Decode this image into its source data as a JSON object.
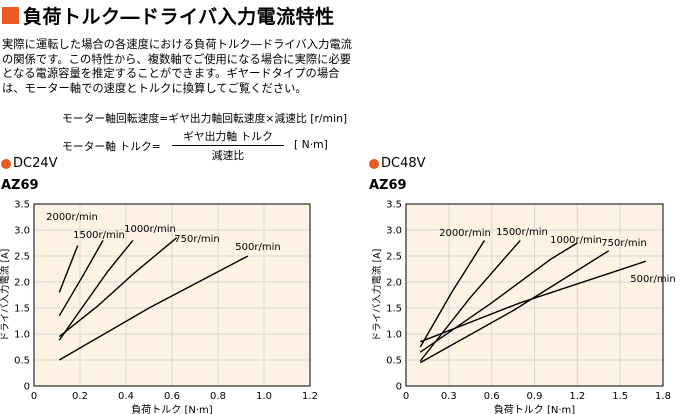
{
  "title": "負荷トルク―ドライバ入力電流特性",
  "intro": "実際に運転した場合の各速度における負荷トルク―ドライバ入力電流の関係です。この特性から、複数軸でご使用になる場合に実際に必要となる電源容量を推定することができます。ギヤードタイプの場合は、モーター軸での速度とトルクに換算してご覧ください。",
  "formula1": "モーター軸回転速度=ギヤ出力軸回転速度×減速比 [r/min]",
  "formula2": {
    "lhs": "モーター軸 トルク=",
    "numerator": "ギヤ出力軸 トルク",
    "denominator": "減速比",
    "unit": "[ N·m]"
  },
  "colors": {
    "accent": "#ee5a24",
    "plot_bg": "#fdf2e4",
    "grid": "#d8d8d8"
  },
  "chart_data": [
    {
      "type": "line",
      "heading": "DC24V",
      "model": "AZ69",
      "xlabel": "負荷トルク [N·m]",
      "ylabel": "ドライバ入力電流 [A]",
      "xlim": [
        0,
        1.2
      ],
      "ylim": [
        0,
        3.5
      ],
      "xticks": [
        "0",
        "0.2",
        "0.4",
        "0.6",
        "0.8",
        "1.0",
        "1.2"
      ],
      "yticks": [
        "0",
        "0.5",
        "1.0",
        "1.5",
        "2.0",
        "2.5",
        "3.0",
        "3.5"
      ],
      "grid": true,
      "series": [
        {
          "name": "2000r/min",
          "x": [
            0.11,
            0.19
          ],
          "y": [
            1.8,
            2.7
          ]
        },
        {
          "name": "1500r/min",
          "x": [
            0.11,
            0.21,
            0.3
          ],
          "y": [
            1.35,
            2.1,
            2.8
          ]
        },
        {
          "name": "1000r/min",
          "x": [
            0.11,
            0.2,
            0.32,
            0.43
          ],
          "y": [
            0.88,
            1.45,
            2.2,
            2.8
          ]
        },
        {
          "name": "750r/min",
          "x": [
            0.11,
            0.28,
            0.43,
            0.62
          ],
          "y": [
            0.95,
            1.55,
            2.15,
            2.85
          ]
        },
        {
          "name": "500r/min",
          "x": [
            0.11,
            0.5,
            0.93
          ],
          "y": [
            0.5,
            1.5,
            2.5
          ]
        }
      ]
    },
    {
      "type": "line",
      "heading": "DC48V",
      "model": "AZ69",
      "xlabel": "負荷トルク [N·m]",
      "ylabel": "ドライバ入力電流 [A]",
      "xlim": [
        0,
        1.8
      ],
      "ylim": [
        0,
        3.5
      ],
      "xticks": [
        "0",
        "0.3",
        "0.6",
        "0.9",
        "1.2",
        "1.5",
        "1.8"
      ],
      "yticks": [
        "0",
        "0.5",
        "1.0",
        "1.5",
        "2.0",
        "2.5",
        "3.0",
        "3.5"
      ],
      "grid": true,
      "series": [
        {
          "name": "2000r/min",
          "x": [
            0.1,
            0.32,
            0.55
          ],
          "y": [
            0.75,
            1.8,
            2.8
          ]
        },
        {
          "name": "1500r/min",
          "x": [
            0.1,
            0.45,
            0.8
          ],
          "y": [
            0.48,
            1.7,
            2.8
          ]
        },
        {
          "name": "1000r/min",
          "x": [
            0.1,
            0.6,
            1.02,
            1.2
          ],
          "y": [
            0.65,
            1.6,
            2.45,
            2.75
          ]
        },
        {
          "name": "750r/min",
          "x": [
            0.1,
            0.75,
            1.42
          ],
          "y": [
            0.45,
            1.45,
            2.6
          ]
        },
        {
          "name": "500r/min",
          "x": [
            0.1,
            0.8,
            1.68
          ],
          "y": [
            0.85,
            1.6,
            2.4
          ]
        }
      ]
    }
  ]
}
